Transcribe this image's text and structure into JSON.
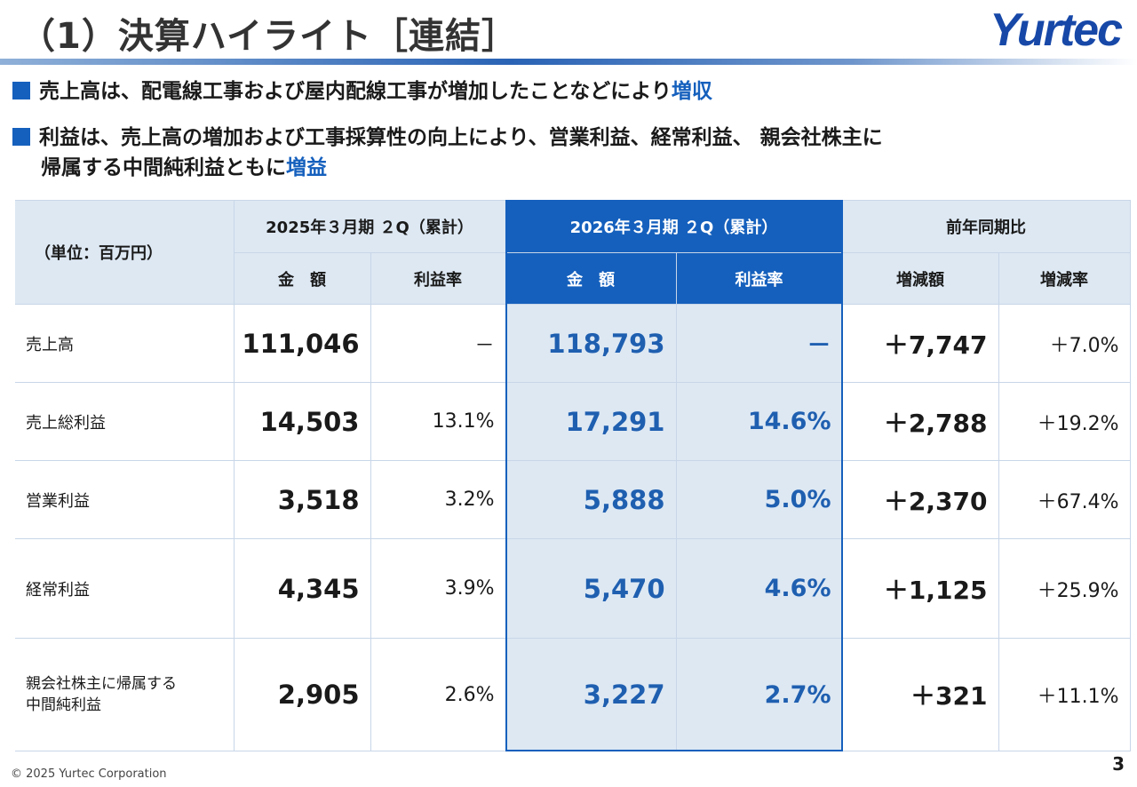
{
  "header": {
    "title": "（1）決算ハイライト［連結］",
    "logo": "Yurtec"
  },
  "bullets": [
    {
      "text": "売上高は、配電線工事および屋内配線工事が増加したことなどにより",
      "highlight": "増収"
    },
    {
      "text1": "利益は、売上高の増加および工事採算性の向上により、営業利益、経常利益、 親会社株主に",
      "text2": "帰属する中間純利益ともに",
      "highlight": "増益"
    }
  ],
  "table": {
    "unit": "（単位：百万円）",
    "groups": [
      "2025年３月期 ２Q（累計）",
      "2026年３月期 ２Q（累計）",
      "前年同期比"
    ],
    "subheaders": [
      "金　額",
      "利益率",
      "金　額",
      "利益率",
      "増減額",
      "増減率"
    ],
    "rows": [
      {
        "label": "売上高",
        "prev_amount": "111,046",
        "prev_rate": "－",
        "cur_amount": "118,793",
        "cur_rate": "－",
        "diff": "＋7,747",
        "diff_rate": "＋7.0%"
      },
      {
        "label": "売上総利益",
        "prev_amount": "14,503",
        "prev_rate": "13.1%",
        "cur_amount": "17,291",
        "cur_rate": "14.6%",
        "diff": "＋2,788",
        "diff_rate": "＋19.2%"
      },
      {
        "label": "営業利益",
        "prev_amount": "3,518",
        "prev_rate": "3.2%",
        "cur_amount": "5,888",
        "cur_rate": "5.0%",
        "diff": "＋2,370",
        "diff_rate": "＋67.4%"
      },
      {
        "label": "経常利益",
        "prev_amount": "4,345",
        "prev_rate": "3.9%",
        "cur_amount": "5,470",
        "cur_rate": "4.6%",
        "diff": "＋1,125",
        "diff_rate": "＋25.9%"
      },
      {
        "label": "親会社株主に帰属する\n中間純利益",
        "prev_amount": "2,905",
        "prev_rate": "2.6%",
        "cur_amount": "3,227",
        "cur_rate": "2.7%",
        "diff": "＋321",
        "diff_rate": "＋11.1%"
      }
    ]
  },
  "footer": {
    "copyright": "© 2025 Yurtec Corporation",
    "page": "3"
  },
  "colors": {
    "accent": "#1560bd",
    "header_bg": "#dde8f3",
    "value_blue": "#1f5fb0"
  }
}
